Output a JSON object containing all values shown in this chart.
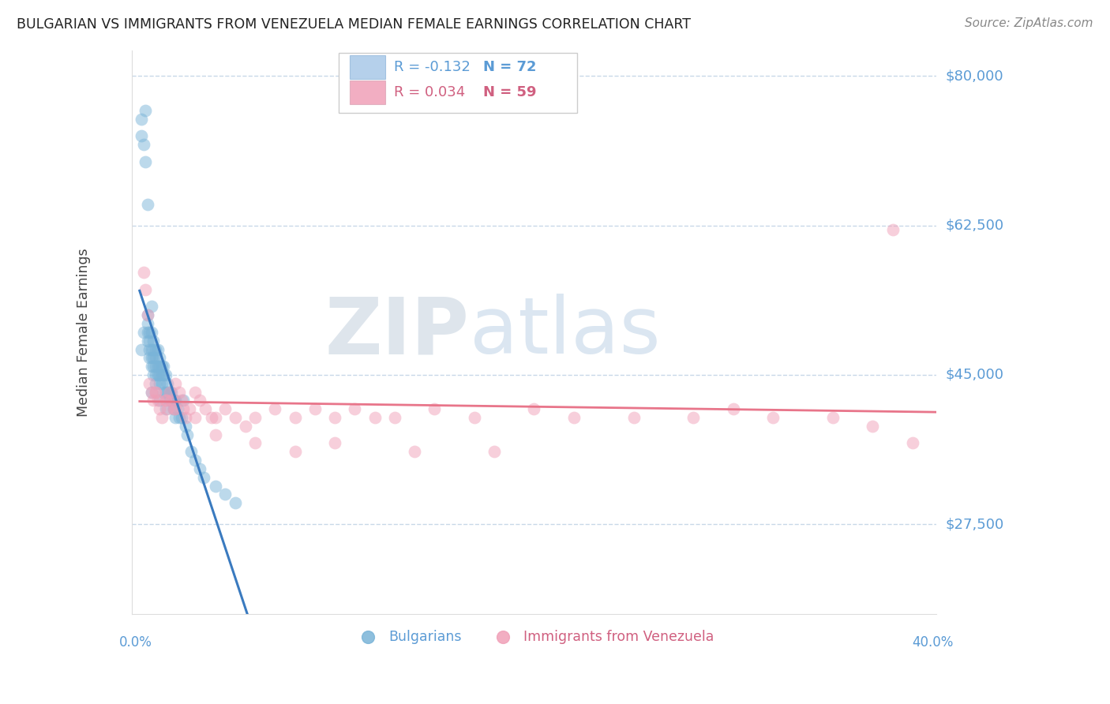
{
  "title": "BULGARIAN VS IMMIGRANTS FROM VENEZUELA MEDIAN FEMALE EARNINGS CORRELATION CHART",
  "source": "Source: ZipAtlas.com",
  "ylabel": "Median Female Earnings",
  "ytick_labels": [
    "$80,000",
    "$62,500",
    "$45,000",
    "$27,500"
  ],
  "ytick_values": [
    80000,
    62500,
    45000,
    27500
  ],
  "ymin": 17000,
  "ymax": 83000,
  "xmin": -0.002,
  "xmax": 0.402,
  "watermark_zip": "ZIP",
  "watermark_atlas": "atlas",
  "legend_1_label_r": "R = -0.132",
  "legend_1_label_n": "N = 72",
  "legend_2_label_r": "R = 0.034",
  "legend_2_label_n": "N = 59",
  "legend_1_color": "#a8c8e8",
  "legend_2_color": "#f0a0b8",
  "trendline_1_color": "#3a7abf",
  "trendline_2_color": "#e8758a",
  "axis_color": "#5b9bd5",
  "grid_color": "#c8d8e8",
  "scatter_blue_color": "#7ab4d8",
  "scatter_pink_color": "#f0a0b8",
  "scatter_alpha": 0.5,
  "scatter_size": 130,
  "bulgarians_x": [
    0.003,
    0.003,
    0.004,
    0.005,
    0.005,
    0.006,
    0.006,
    0.006,
    0.006,
    0.007,
    0.007,
    0.007,
    0.007,
    0.008,
    0.008,
    0.008,
    0.008,
    0.008,
    0.009,
    0.009,
    0.009,
    0.009,
    0.009,
    0.01,
    0.01,
    0.01,
    0.01,
    0.011,
    0.011,
    0.011,
    0.012,
    0.012,
    0.012,
    0.012,
    0.013,
    0.013,
    0.013,
    0.014,
    0.014,
    0.014,
    0.015,
    0.015,
    0.016,
    0.016,
    0.017,
    0.017,
    0.018,
    0.018,
    0.019,
    0.019,
    0.02,
    0.02,
    0.021,
    0.022,
    0.023,
    0.024,
    0.025,
    0.026,
    0.028,
    0.03,
    0.032,
    0.034,
    0.04,
    0.045,
    0.05,
    0.003,
    0.004,
    0.006,
    0.008,
    0.01,
    0.012,
    0.015
  ],
  "bulgarians_y": [
    75000,
    73000,
    72000,
    76000,
    70000,
    65000,
    52000,
    51000,
    50000,
    50000,
    49000,
    48000,
    47000,
    53000,
    50000,
    48000,
    47000,
    46000,
    49000,
    48000,
    47000,
    46000,
    45000,
    48000,
    47000,
    46000,
    45000,
    48000,
    46000,
    45000,
    47000,
    46000,
    45000,
    44000,
    46000,
    45000,
    44000,
    46000,
    45000,
    43000,
    45000,
    43000,
    44000,
    43000,
    43000,
    42000,
    43000,
    42000,
    42000,
    41000,
    42000,
    40000,
    41000,
    40000,
    40000,
    42000,
    39000,
    38000,
    36000,
    35000,
    34000,
    33000,
    32000,
    31000,
    30000,
    48000,
    50000,
    49000,
    43000,
    44000,
    42000,
    41000
  ],
  "venezuela_x": [
    0.004,
    0.005,
    0.006,
    0.007,
    0.008,
    0.009,
    0.01,
    0.011,
    0.012,
    0.013,
    0.015,
    0.016,
    0.017,
    0.018,
    0.019,
    0.02,
    0.022,
    0.023,
    0.024,
    0.025,
    0.027,
    0.03,
    0.032,
    0.035,
    0.038,
    0.04,
    0.045,
    0.05,
    0.055,
    0.06,
    0.07,
    0.08,
    0.09,
    0.1,
    0.11,
    0.12,
    0.13,
    0.15,
    0.17,
    0.2,
    0.22,
    0.25,
    0.28,
    0.3,
    0.32,
    0.35,
    0.37,
    0.38,
    0.39,
    0.01,
    0.015,
    0.02,
    0.03,
    0.04,
    0.06,
    0.08,
    0.1,
    0.14,
    0.18
  ],
  "venezuela_y": [
    57000,
    55000,
    52000,
    44000,
    43000,
    42000,
    43000,
    42000,
    41000,
    40000,
    42000,
    41000,
    43000,
    42000,
    41000,
    44000,
    43000,
    42000,
    41000,
    40000,
    41000,
    43000,
    42000,
    41000,
    40000,
    40000,
    41000,
    40000,
    39000,
    40000,
    41000,
    40000,
    41000,
    40000,
    41000,
    40000,
    40000,
    41000,
    40000,
    41000,
    40000,
    40000,
    40000,
    41000,
    40000,
    40000,
    39000,
    62000,
    37000,
    43000,
    42000,
    41000,
    40000,
    38000,
    37000,
    36000,
    37000,
    36000,
    36000
  ]
}
